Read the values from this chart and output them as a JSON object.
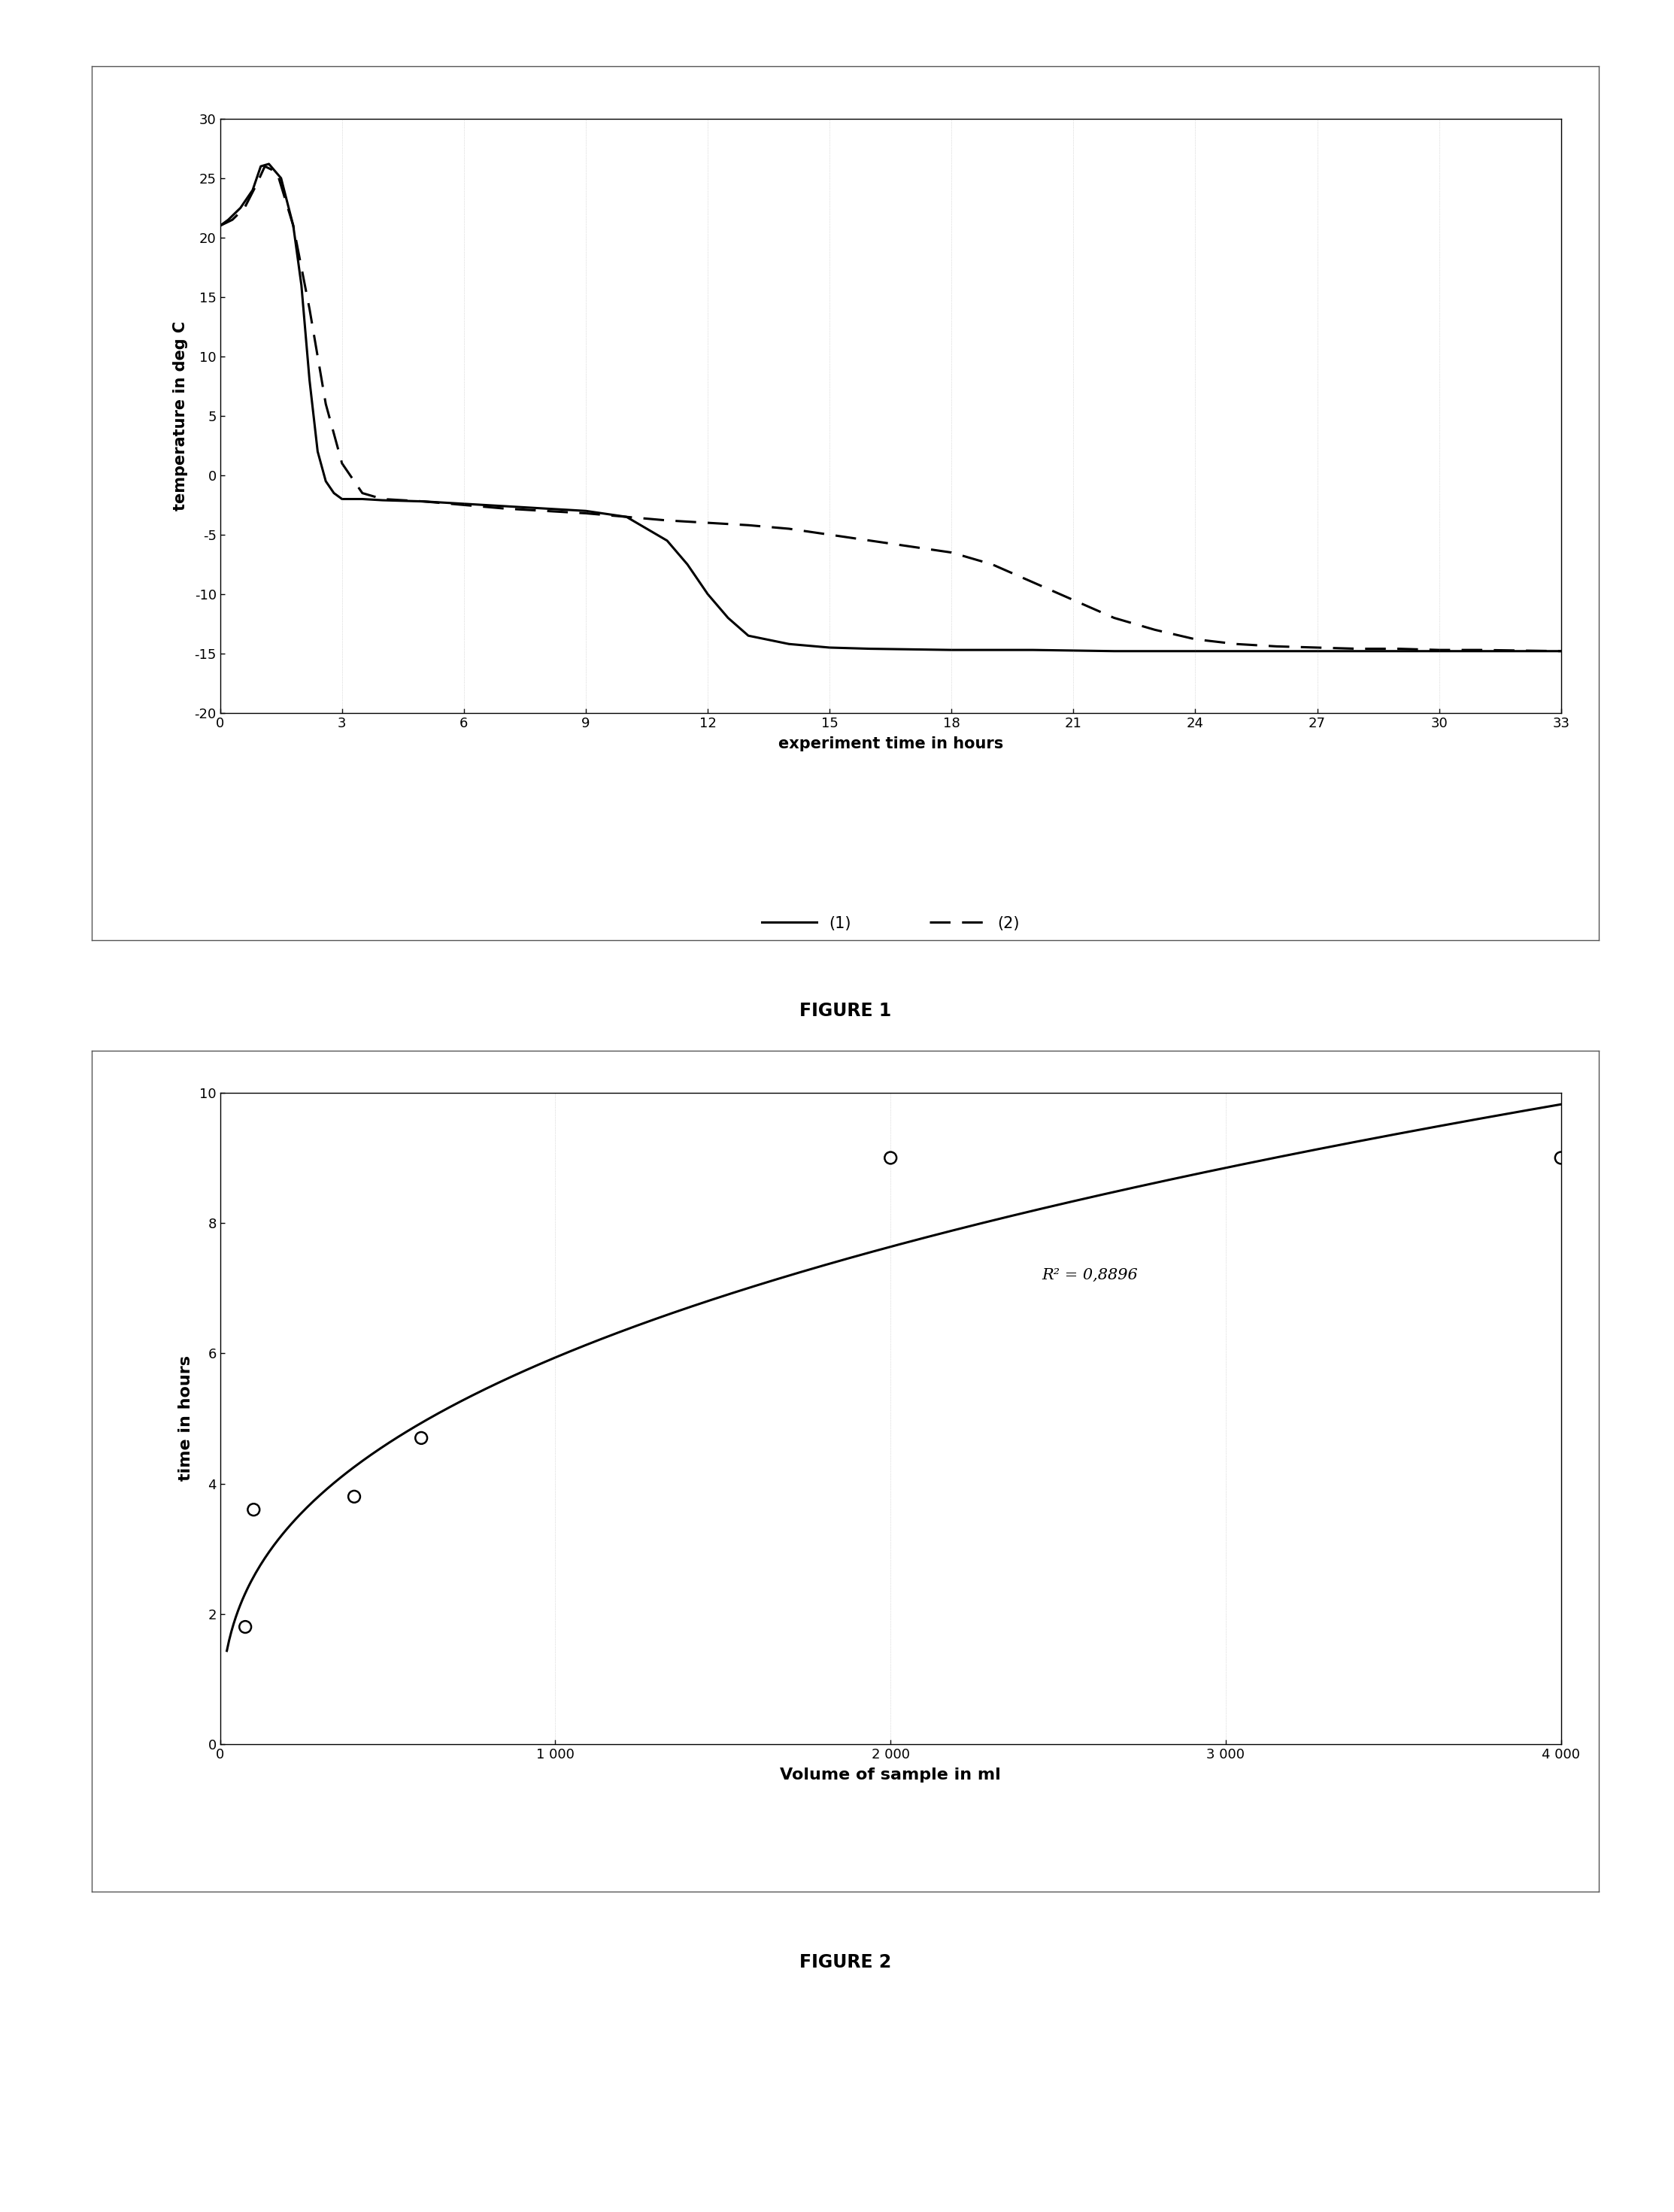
{
  "fig1": {
    "xlabel": "experiment time in hours",
    "ylabel": "temperature in deg C",
    "xlim": [
      0,
      33
    ],
    "ylim": [
      -20,
      30
    ],
    "xticks": [
      0,
      3,
      6,
      9,
      12,
      15,
      18,
      21,
      24,
      27,
      30,
      33
    ],
    "yticks": [
      -20,
      -15,
      -10,
      -5,
      0,
      5,
      10,
      15,
      20,
      25,
      30
    ],
    "line1_x": [
      0,
      0.2,
      0.5,
      0.8,
      1.0,
      1.2,
      1.5,
      1.8,
      2.0,
      2.2,
      2.4,
      2.6,
      2.8,
      3.0,
      3.2,
      3.5,
      4.0,
      5.0,
      6.0,
      7.0,
      8.0,
      9.0,
      10.0,
      11.0,
      11.5,
      12.0,
      12.5,
      13.0,
      14.0,
      15.0,
      16.0,
      18.0,
      20.0,
      22.0,
      24.0,
      26.0,
      28.0,
      30.0,
      33.0
    ],
    "line1_y": [
      21,
      21.5,
      22.5,
      24.0,
      26.0,
      26.2,
      25.0,
      21.0,
      16.0,
      8.0,
      2.0,
      -0.5,
      -1.5,
      -2.0,
      -2.0,
      -2.0,
      -2.1,
      -2.2,
      -2.4,
      -2.6,
      -2.8,
      -3.0,
      -3.5,
      -5.5,
      -7.5,
      -10.0,
      -12.0,
      -13.5,
      -14.2,
      -14.5,
      -14.6,
      -14.7,
      -14.7,
      -14.8,
      -14.8,
      -14.8,
      -14.8,
      -14.8,
      -14.8
    ],
    "line2_x": [
      0,
      0.3,
      0.6,
      0.9,
      1.1,
      1.4,
      1.8,
      2.2,
      2.6,
      3.0,
      3.5,
      4.0,
      5.0,
      6.0,
      7.0,
      8.0,
      9.0,
      10.0,
      11.0,
      12.0,
      13.0,
      14.0,
      15.0,
      16.0,
      17.0,
      18.0,
      19.0,
      20.0,
      21.0,
      22.0,
      23.0,
      24.0,
      25.0,
      26.0,
      27.0,
      28.0,
      29.0,
      30.0,
      31.0,
      33.0
    ],
    "line2_y": [
      21,
      21.5,
      22.5,
      24.5,
      26.0,
      25.5,
      21.0,
      14.0,
      6.0,
      1.0,
      -1.5,
      -2.0,
      -2.2,
      -2.5,
      -2.8,
      -3.0,
      -3.2,
      -3.5,
      -3.8,
      -4.0,
      -4.2,
      -4.5,
      -5.0,
      -5.5,
      -6.0,
      -6.5,
      -7.5,
      -9.0,
      -10.5,
      -12.0,
      -13.0,
      -13.8,
      -14.2,
      -14.4,
      -14.5,
      -14.6,
      -14.6,
      -14.7,
      -14.7,
      -14.8
    ],
    "legend1": "(1)",
    "legend2": "(2)"
  },
  "fig2": {
    "xlabel": "Volume of sample in ml",
    "ylabel": "time in hours",
    "xlim": [
      0,
      4000
    ],
    "ylim": [
      0,
      10
    ],
    "xticks": [
      0,
      1000,
      2000,
      3000,
      4000
    ],
    "xticklabels": [
      "0",
      "1 000",
      "2 000",
      "3 000",
      "4 000"
    ],
    "yticks": [
      0,
      2,
      4,
      6,
      8,
      10
    ],
    "scatter_x": [
      75,
      100,
      400,
      600,
      2000,
      4000
    ],
    "scatter_y": [
      1.8,
      3.6,
      3.8,
      4.7,
      9.0,
      9.0
    ],
    "r_squared": "R² = 0,8896"
  },
  "figure1_label": "FIGURE 1",
  "figure2_label": "FIGURE 2",
  "bg": "#ffffff"
}
